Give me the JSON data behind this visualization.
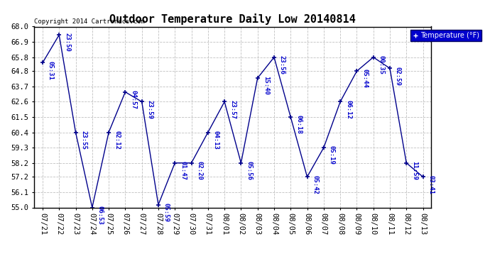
{
  "title": "Outdoor Temperature Daily Low 20140814",
  "copyright_text": "Copyright 2014 Cartronics.com",
  "legend_label": "Temperature (°F)",
  "dates": [
    "07/21",
    "07/22",
    "07/23",
    "07/24",
    "07/25",
    "07/26",
    "07/27",
    "07/28",
    "07/29",
    "07/30",
    "07/31",
    "08/01",
    "08/02",
    "08/03",
    "08/04",
    "08/05",
    "08/06",
    "08/07",
    "08/08",
    "08/09",
    "08/10",
    "08/11",
    "08/12",
    "08/13"
  ],
  "values": [
    65.4,
    67.4,
    60.4,
    55.0,
    60.4,
    63.3,
    62.6,
    55.2,
    58.2,
    58.2,
    60.4,
    62.6,
    58.2,
    64.3,
    65.8,
    61.5,
    57.2,
    59.3,
    62.6,
    64.8,
    65.8,
    65.0,
    58.2,
    57.2
  ],
  "time_labels": [
    "05:31",
    "23:50",
    "23:55",
    "06:53",
    "02:12",
    "04:57",
    "23:59",
    "05:59",
    "01:47",
    "02:20",
    "04:13",
    "23:57",
    "05:56",
    "15:40",
    "23:56",
    "06:18",
    "05:42",
    "05:19",
    "06:12",
    "05:44",
    "00:35",
    "02:59",
    "11:59",
    "03:41"
  ],
  "ylim": [
    55.0,
    68.0
  ],
  "yticks": [
    55.0,
    56.1,
    57.2,
    58.2,
    59.3,
    60.4,
    61.5,
    62.6,
    63.7,
    64.8,
    65.8,
    66.9,
    68.0
  ],
  "line_color": "#00008B",
  "marker_color": "#00008B",
  "label_color": "#0000CD",
  "background_color": "#ffffff",
  "grid_color": "#C0C0C0",
  "title_fontsize": 11,
  "tick_fontsize": 7.5,
  "label_fontsize": 6.5
}
